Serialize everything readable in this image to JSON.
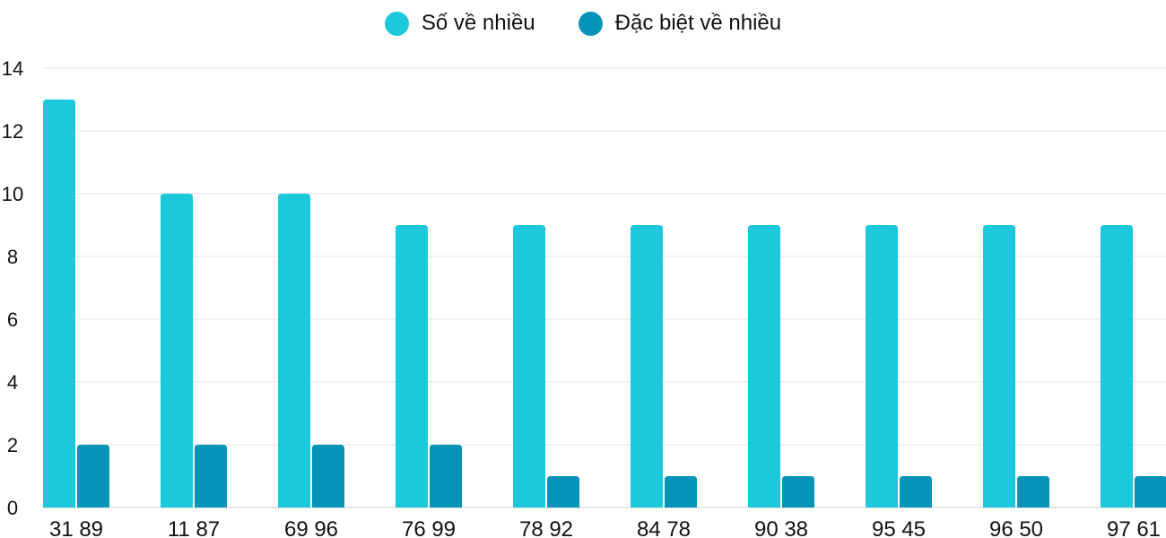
{
  "chart_data": {
    "type": "bar",
    "categories": [
      "31 89",
      "11 87",
      "69 96",
      "76 99",
      "78 92",
      "84 78",
      "90 38",
      "95 45",
      "96 50",
      "97 61"
    ],
    "series": [
      {
        "name": "Số về nhiều",
        "color": "#1bc8dc",
        "values": [
          13,
          10,
          10,
          9,
          9,
          9,
          9,
          9,
          9,
          9
        ]
      },
      {
        "name": "Đặc biệt về nhiều",
        "color": "#0593b8",
        "values": [
          2,
          2,
          2,
          2,
          1,
          1,
          1,
          1,
          1,
          1
        ]
      }
    ],
    "yticks": [
      "0",
      "2",
      "4",
      "6",
      "8",
      "10",
      "12",
      "14"
    ],
    "ylim": [
      0,
      14
    ],
    "grid": true,
    "legend": "top-center"
  }
}
